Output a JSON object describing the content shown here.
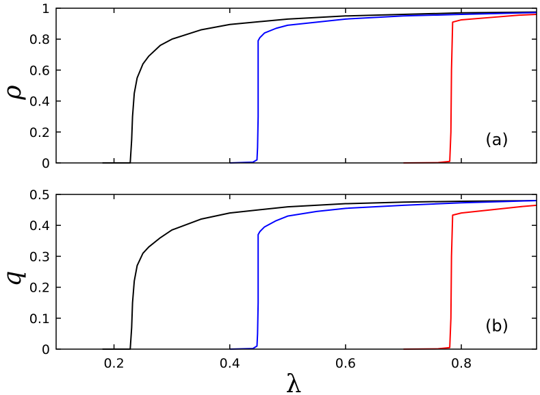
{
  "chart_data": [
    {
      "type": "line",
      "panel_label": "(a)",
      "ylabel": "ρ",
      "xlabel": "",
      "xlim": [
        0.1,
        0.93
      ],
      "ylim": [
        0,
        1
      ],
      "xticks": [
        0.2,
        0.4,
        0.6,
        0.8
      ],
      "yticks": [
        0,
        0.2,
        0.4,
        0.6,
        0.8,
        1
      ],
      "ytick_labels": [
        "0",
        "0.2",
        "0.4",
        "0.6",
        "0.8",
        "1"
      ],
      "series": [
        {
          "color": "#000000",
          "x": [
            0.18,
            0.228,
            0.2305,
            0.232,
            0.235,
            0.24,
            0.25,
            0.26,
            0.28,
            0.3,
            0.35,
            0.4,
            0.5,
            0.6,
            0.7,
            0.8,
            0.93
          ],
          "y": [
            0,
            0,
            0.15,
            0.3,
            0.45,
            0.55,
            0.64,
            0.69,
            0.76,
            0.8,
            0.86,
            0.895,
            0.93,
            0.95,
            0.96,
            0.97,
            0.975
          ]
        },
        {
          "color": "#0000ff",
          "x": [
            0.4,
            0.44,
            0.447,
            0.448,
            0.449,
            0.449,
            0.452,
            0.46,
            0.48,
            0.5,
            0.55,
            0.6,
            0.7,
            0.8,
            0.93
          ],
          "y": [
            0,
            0.005,
            0.02,
            0.1,
            0.3,
            0.79,
            0.81,
            0.84,
            0.87,
            0.89,
            0.91,
            0.93,
            0.95,
            0.96,
            0.972
          ]
        },
        {
          "color": "#ff0000",
          "x": [
            0.7,
            0.76,
            0.78,
            0.782,
            0.783,
            0.785,
            0.8,
            0.85,
            0.9,
            0.93
          ],
          "y": [
            0,
            0.002,
            0.01,
            0.2,
            0.6,
            0.91,
            0.925,
            0.94,
            0.955,
            0.96
          ]
        }
      ]
    },
    {
      "type": "line",
      "panel_label": "(b)",
      "ylabel": "q",
      "xlabel": "λ",
      "xlim": [
        0.1,
        0.93
      ],
      "ylim": [
        0,
        0.5
      ],
      "xticks": [
        0.2,
        0.4,
        0.6,
        0.8
      ],
      "xtick_labels": [
        "0.2",
        "0.4",
        "0.6",
        "0.8"
      ],
      "yticks": [
        0,
        0.1,
        0.2,
        0.3,
        0.4,
        0.5
      ],
      "ytick_labels": [
        "0",
        "0.1",
        "0.2",
        "0.3",
        "0.4",
        "0.5"
      ],
      "series": [
        {
          "color": "#000000",
          "x": [
            0.18,
            0.228,
            0.2305,
            0.232,
            0.235,
            0.24,
            0.25,
            0.26,
            0.28,
            0.3,
            0.35,
            0.4,
            0.5,
            0.6,
            0.7,
            0.8,
            0.93
          ],
          "y": [
            0,
            0,
            0.07,
            0.15,
            0.22,
            0.27,
            0.31,
            0.33,
            0.36,
            0.385,
            0.42,
            0.44,
            0.46,
            0.47,
            0.475,
            0.478,
            0.48
          ]
        },
        {
          "color": "#0000ff",
          "x": [
            0.4,
            0.44,
            0.447,
            0.448,
            0.449,
            0.449,
            0.452,
            0.46,
            0.48,
            0.5,
            0.55,
            0.6,
            0.7,
            0.8,
            0.93
          ],
          "y": [
            0,
            0.002,
            0.01,
            0.05,
            0.15,
            0.37,
            0.38,
            0.395,
            0.415,
            0.43,
            0.445,
            0.455,
            0.465,
            0.473,
            0.48
          ]
        },
        {
          "color": "#ff0000",
          "x": [
            0.7,
            0.76,
            0.78,
            0.782,
            0.783,
            0.785,
            0.8,
            0.85,
            0.9,
            0.93
          ],
          "y": [
            0,
            0.001,
            0.005,
            0.1,
            0.3,
            0.433,
            0.44,
            0.45,
            0.46,
            0.465
          ]
        }
      ]
    }
  ]
}
